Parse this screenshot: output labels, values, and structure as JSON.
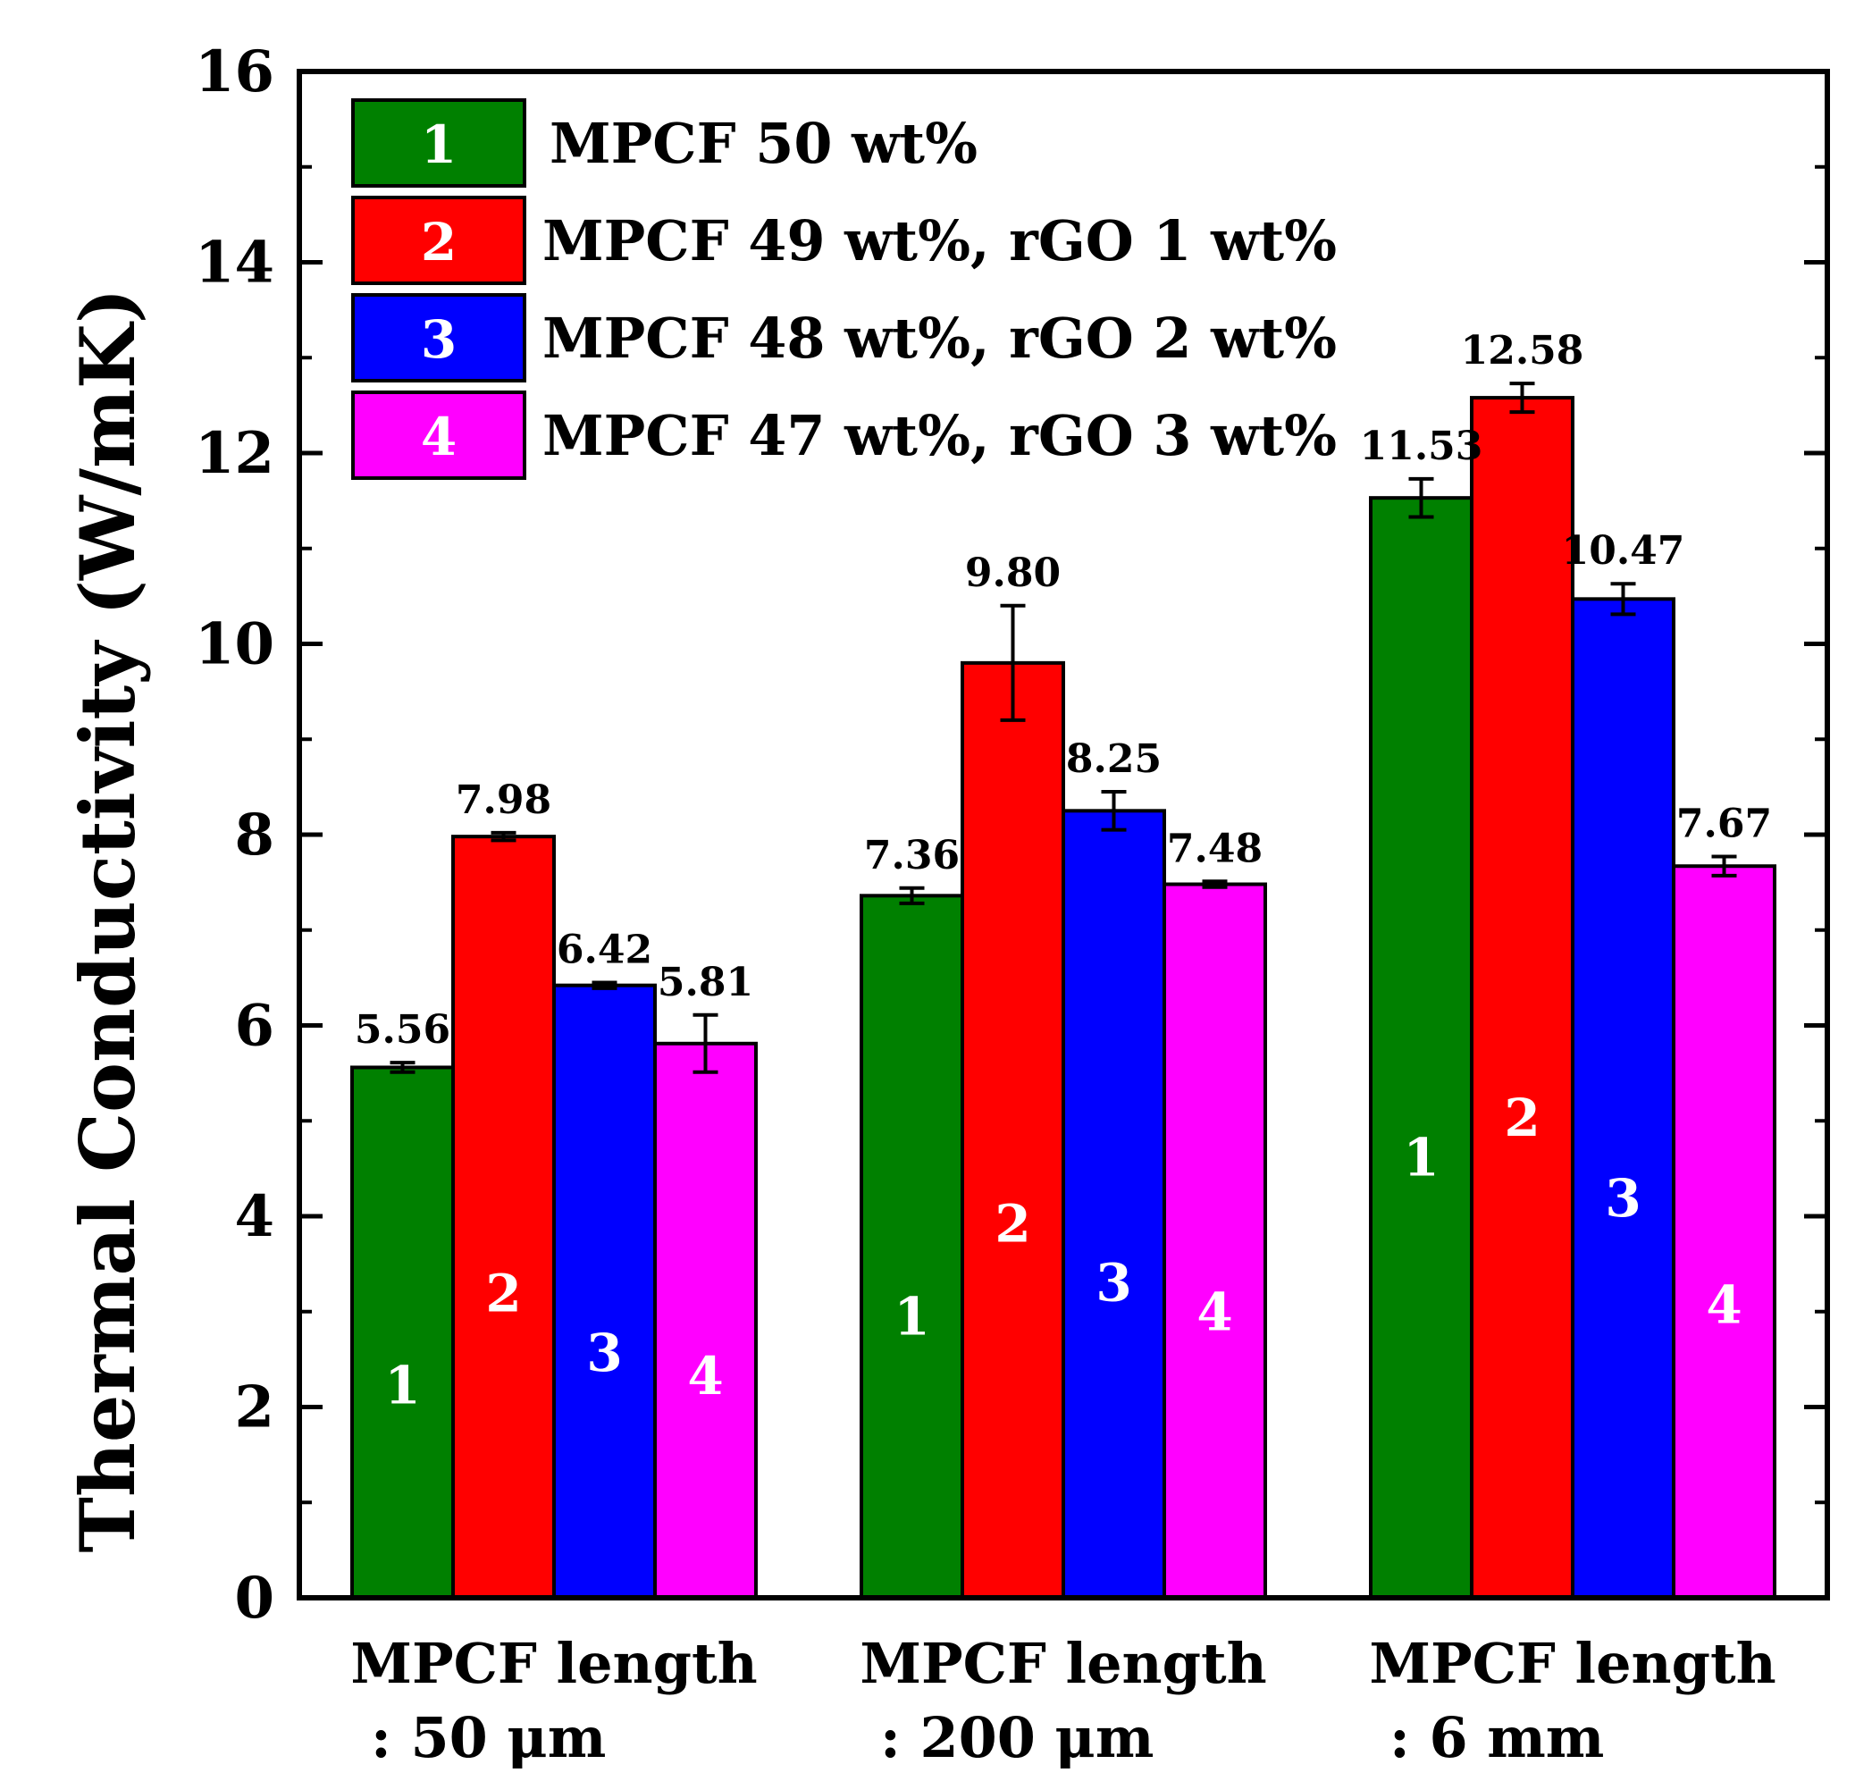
{
  "chart_data": {
    "type": "bar",
    "title": "",
    "xlabel": "",
    "ylabel": "Thermal Conductivity (W/mK)",
    "ylim": [
      0,
      16
    ],
    "yticks": [
      "0",
      "2",
      "4",
      "6",
      "8",
      "10",
      "12",
      "14",
      "16"
    ],
    "grid": false,
    "legend_position": "top-left",
    "categories": [
      {
        "line1": "MPCF length",
        "line2": ": 50 μm"
      },
      {
        "line1": "MPCF length",
        "line2": ": 200 μm"
      },
      {
        "line1": "MPCF length",
        "line2": ": 6 mm"
      }
    ],
    "series": [
      {
        "number": "1",
        "name": "MPCF 50 wt%",
        "color": "#008000",
        "values": [
          5.56,
          7.36,
          11.53
        ],
        "errors": [
          0.05,
          0.08,
          0.2
        ],
        "labels": [
          "5.56",
          "7.36",
          "11.53"
        ]
      },
      {
        "number": "2",
        "name": "MPCF 49 wt%, rGO 1 wt%",
        "color": "#ff0000",
        "values": [
          7.98,
          9.8,
          12.58
        ],
        "errors": [
          0.04,
          0.6,
          0.15
        ],
        "labels": [
          "7.98",
          "9.80",
          "12.58"
        ]
      },
      {
        "number": "3",
        "name": "MPCF 48 wt%, rGO 2 wt%",
        "color": "#0000ff",
        "values": [
          6.42,
          8.25,
          10.47
        ],
        "errors": [
          0.03,
          0.2,
          0.16
        ],
        "labels": [
          "6.42",
          "8.25",
          "10.47"
        ]
      },
      {
        "number": "4",
        "name": "MPCF 47 wt%, rGO 3 wt%",
        "color": "#ff00ff",
        "values": [
          5.81,
          7.48,
          7.67
        ],
        "errors": [
          0.3,
          0.03,
          0.1
        ],
        "labels": [
          "5.81",
          "7.48",
          "7.67"
        ]
      }
    ]
  }
}
